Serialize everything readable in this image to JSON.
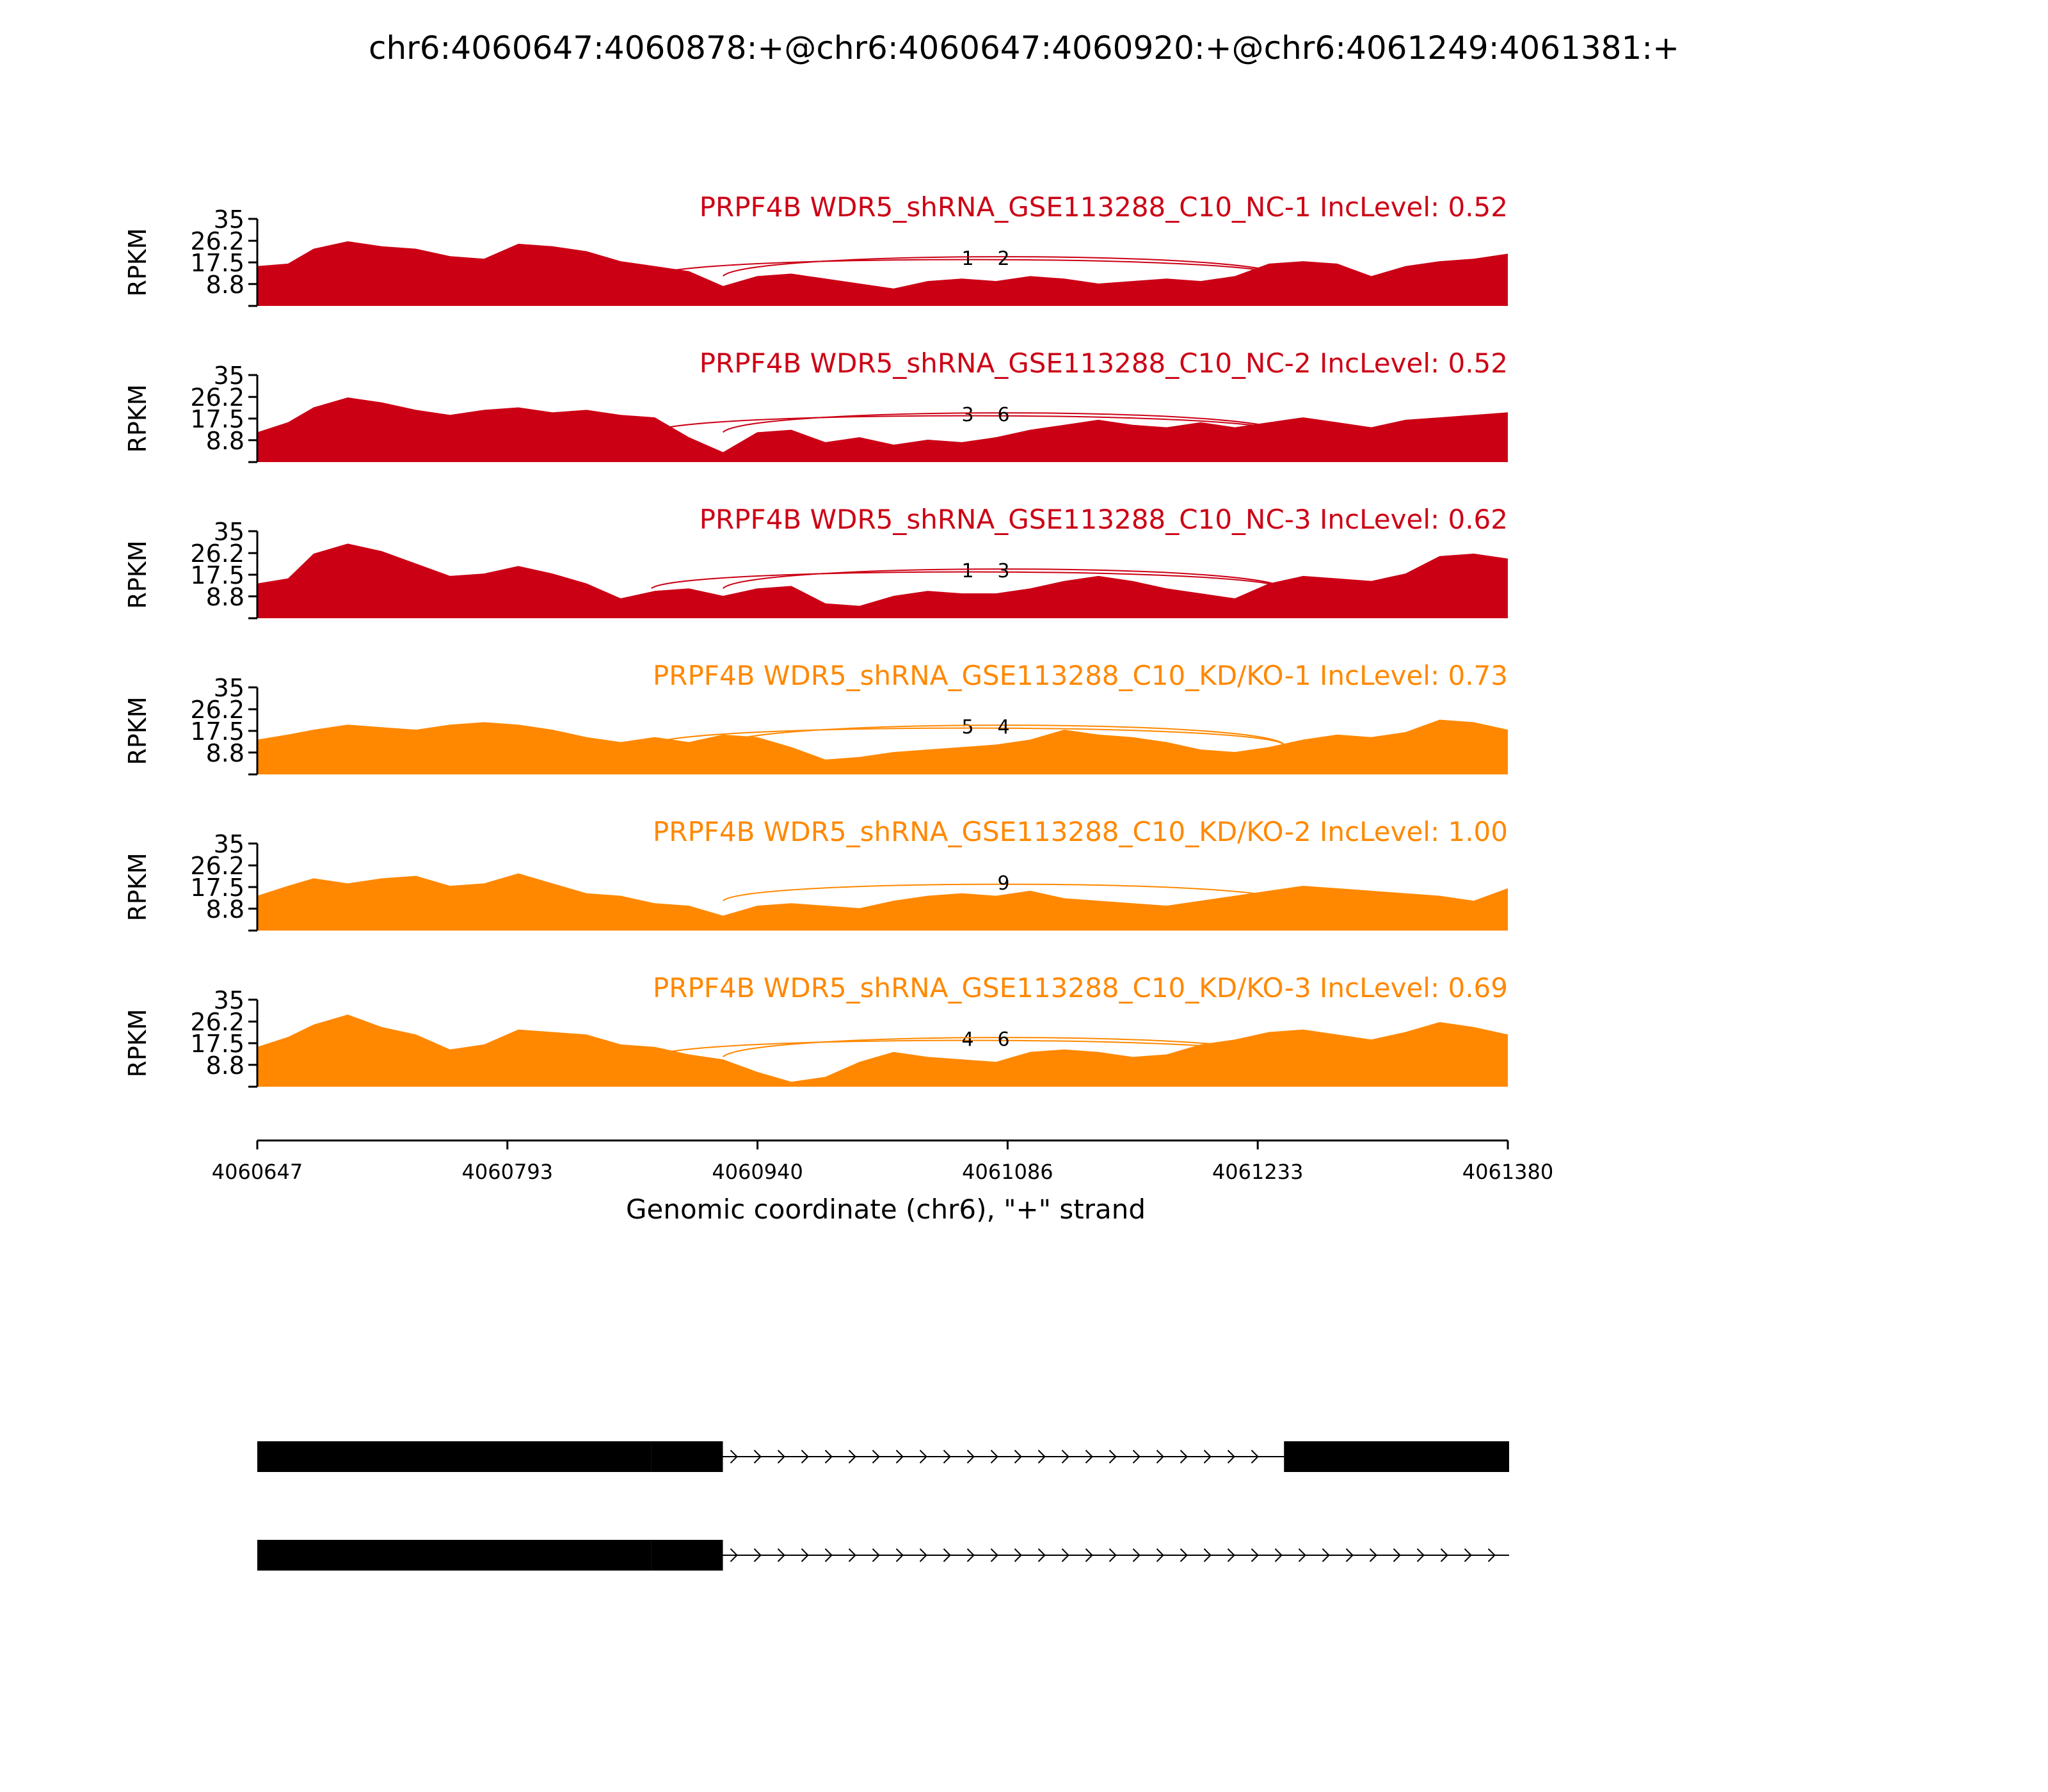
{
  "chart_data": {
    "type": "area",
    "title": "chr6:4060647:4060878:+@chr6:4060647:4060920:+@chr6:4061249:4061381:+",
    "xlabel": "Genomic coordinate (chr6), \"+\" strand",
    "ylabel": "RPKM",
    "xlim": [
      4060647,
      4061380
    ],
    "ylim": [
      0,
      35
    ],
    "x_ticks": [
      "4060647",
      "4060793",
      "4060940",
      "4061086",
      "4061233",
      "4061380"
    ],
    "y_ticks": [
      "8.8",
      "17.5",
      "26.2",
      "35"
    ],
    "colors": {
      "NC": "#cc0015",
      "KD": "#ff8800",
      "gene": "#000000"
    },
    "series": [
      {
        "name": "PRPF4B WDR5_shRNA_GSE113288_C10_NC-1 IncLevel: 0.52",
        "group": "NC",
        "x": [
          4060647,
          4060665,
          4060680,
          4060700,
          4060720,
          4060740,
          4060760,
          4060780,
          4060800,
          4060820,
          4060840,
          4060860,
          4060880,
          4060900,
          4060920,
          4060940,
          4060960,
          4060980,
          4061000,
          4061020,
          4061040,
          4061060,
          4061080,
          4061100,
          4061120,
          4061140,
          4061160,
          4061180,
          4061200,
          4061220,
          4061240,
          4061260,
          4061280,
          4061300,
          4061320,
          4061340,
          4061360,
          4061380
        ],
        "y": [
          16,
          17,
          23,
          26,
          24,
          23,
          20,
          19,
          25,
          24,
          22,
          18,
          16,
          14,
          8,
          12,
          13,
          11,
          9,
          7,
          10,
          11,
          10,
          12,
          11,
          9,
          10,
          11,
          10,
          12,
          17,
          18,
          17,
          12,
          16,
          18,
          19,
          21
        ],
        "junctions": [
          {
            "label": "1",
            "from": 4060878,
            "to": 4061249
          },
          {
            "label": "2",
            "from": 4060920,
            "to": 4061249
          }
        ]
      },
      {
        "name": "PRPF4B WDR5_shRNA_GSE113288_C10_NC-2 IncLevel: 0.52",
        "group": "NC",
        "x": [
          4060647,
          4060665,
          4060680,
          4060700,
          4060720,
          4060740,
          4060760,
          4060780,
          4060800,
          4060820,
          4060840,
          4060860,
          4060880,
          4060900,
          4060920,
          4060940,
          4060960,
          4060980,
          4061000,
          4061020,
          4061040,
          4061060,
          4061080,
          4061100,
          4061120,
          4061140,
          4061160,
          4061180,
          4061200,
          4061220,
          4061240,
          4061260,
          4061280,
          4061300,
          4061320,
          4061340,
          4061360,
          4061380
        ],
        "y": [
          12,
          16,
          22,
          26,
          24,
          21,
          19,
          21,
          22,
          20,
          21,
          19,
          18,
          10,
          4,
          12,
          13,
          8,
          10,
          7,
          9,
          8,
          10,
          13,
          15,
          17,
          15,
          14,
          16,
          14,
          16,
          18,
          16,
          14,
          17,
          18,
          19,
          20
        ],
        "junctions": [
          {
            "label": "3",
            "from": 4060878,
            "to": 4061249
          },
          {
            "label": "6",
            "from": 4060920,
            "to": 4061249
          }
        ]
      },
      {
        "name": "PRPF4B WDR5_shRNA_GSE113288_C10_NC-3 IncLevel: 0.62",
        "group": "NC",
        "x": [
          4060647,
          4060665,
          4060680,
          4060700,
          4060720,
          4060740,
          4060760,
          4060780,
          4060800,
          4060820,
          4060840,
          4060860,
          4060880,
          4060900,
          4060920,
          4060940,
          4060960,
          4060980,
          4061000,
          4061020,
          4061040,
          4061060,
          4061080,
          4061100,
          4061120,
          4061140,
          4061160,
          4061180,
          4061200,
          4061220,
          4061240,
          4061260,
          4061280,
          4061300,
          4061320,
          4061340,
          4061360,
          4061380
        ],
        "y": [
          14,
          16,
          26,
          30,
          27,
          22,
          17,
          18,
          21,
          18,
          14,
          8,
          11,
          12,
          9,
          12,
          13,
          6,
          5,
          9,
          11,
          10,
          10,
          12,
          15,
          17,
          15,
          12,
          10,
          8,
          14,
          17,
          16,
          15,
          18,
          25,
          26,
          24
        ],
        "junctions": [
          {
            "label": "1",
            "from": 4060878,
            "to": 4061249
          },
          {
            "label": "3",
            "from": 4060920,
            "to": 4061249
          }
        ]
      },
      {
        "name": "PRPF4B WDR5_shRNA_GSE113288_C10_KD/KO-1 IncLevel: 0.73",
        "group": "KD",
        "x": [
          4060647,
          4060665,
          4060680,
          4060700,
          4060720,
          4060740,
          4060760,
          4060780,
          4060800,
          4060820,
          4060840,
          4060860,
          4060880,
          4060900,
          4060920,
          4060940,
          4060960,
          4060980,
          4061000,
          4061020,
          4061040,
          4061060,
          4061080,
          4061100,
          4061120,
          4061140,
          4061160,
          4061180,
          4061200,
          4061220,
          4061240,
          4061260,
          4061280,
          4061300,
          4061320,
          4061340,
          4061360,
          4061380
        ],
        "y": [
          14,
          16,
          18,
          20,
          19,
          18,
          20,
          21,
          20,
          18,
          15,
          13,
          15,
          13,
          16,
          15,
          11,
          6,
          7,
          9,
          10,
          11,
          12,
          14,
          18,
          16,
          15,
          13,
          10,
          9,
          11,
          14,
          16,
          15,
          17,
          22,
          21,
          18
        ],
        "junctions": [
          {
            "label": "5",
            "from": 4060878,
            "to": 4061249
          },
          {
            "label": "4",
            "from": 4060920,
            "to": 4061249
          }
        ]
      },
      {
        "name": "PRPF4B WDR5_shRNA_GSE113288_C10_KD/KO-2 IncLevel: 1.00",
        "group": "KD",
        "x": [
          4060647,
          4060665,
          4060680,
          4060700,
          4060720,
          4060740,
          4060760,
          4060780,
          4060800,
          4060820,
          4060840,
          4060860,
          4060880,
          4060900,
          4060920,
          4060940,
          4060960,
          4060980,
          4061000,
          4061020,
          4061040,
          4061060,
          4061080,
          4061100,
          4061120,
          4061140,
          4061160,
          4061180,
          4061200,
          4061220,
          4061240,
          4061260,
          4061280,
          4061300,
          4061320,
          4061340,
          4061360,
          4061380
        ],
        "y": [
          14,
          18,
          21,
          19,
          21,
          22,
          18,
          19,
          23,
          19,
          15,
          14,
          11,
          10,
          6,
          10,
          11,
          10,
          9,
          12,
          14,
          15,
          14,
          16,
          13,
          12,
          11,
          10,
          12,
          14,
          16,
          18,
          17,
          16,
          15,
          14,
          12,
          17
        ],
        "junctions": [
          {
            "label": "9",
            "from": 4060920,
            "to": 4061249
          }
        ]
      },
      {
        "name": "PRPF4B WDR5_shRNA_GSE113288_C10_KD/KO-3 IncLevel: 0.69",
        "group": "KD",
        "x": [
          4060647,
          4060665,
          4060680,
          4060700,
          4060720,
          4060740,
          4060760,
          4060780,
          4060800,
          4060820,
          4060840,
          4060860,
          4060880,
          4060900,
          4060920,
          4060940,
          4060960,
          4060980,
          4061000,
          4061020,
          4061040,
          4061060,
          4061080,
          4061100,
          4061120,
          4061140,
          4061160,
          4061180,
          4061200,
          4061220,
          4061240,
          4061260,
          4061280,
          4061300,
          4061320,
          4061340,
          4061360,
          4061380
        ],
        "y": [
          16,
          20,
          25,
          29,
          24,
          21,
          15,
          17,
          23,
          22,
          21,
          17,
          16,
          13,
          11,
          6,
          2,
          4,
          10,
          14,
          12,
          11,
          10,
          14,
          15,
          14,
          12,
          13,
          17,
          19,
          22,
          23,
          21,
          19,
          22,
          26,
          24,
          21
        ],
        "junctions": [
          {
            "label": "4",
            "from": 4060878,
            "to": 4061249
          },
          {
            "label": "6",
            "from": 4060920,
            "to": 4061249
          }
        ]
      }
    ],
    "gene_structures": [
      {
        "exons": [
          [
            4060647,
            4060878
          ],
          [
            4060878,
            4060920
          ],
          [
            4061249,
            4061381
          ]
        ]
      },
      {
        "exons": [
          [
            4060647,
            4060878
          ],
          [
            4060878,
            4060920
          ]
        ],
        "intron_end": 4061381
      }
    ]
  }
}
